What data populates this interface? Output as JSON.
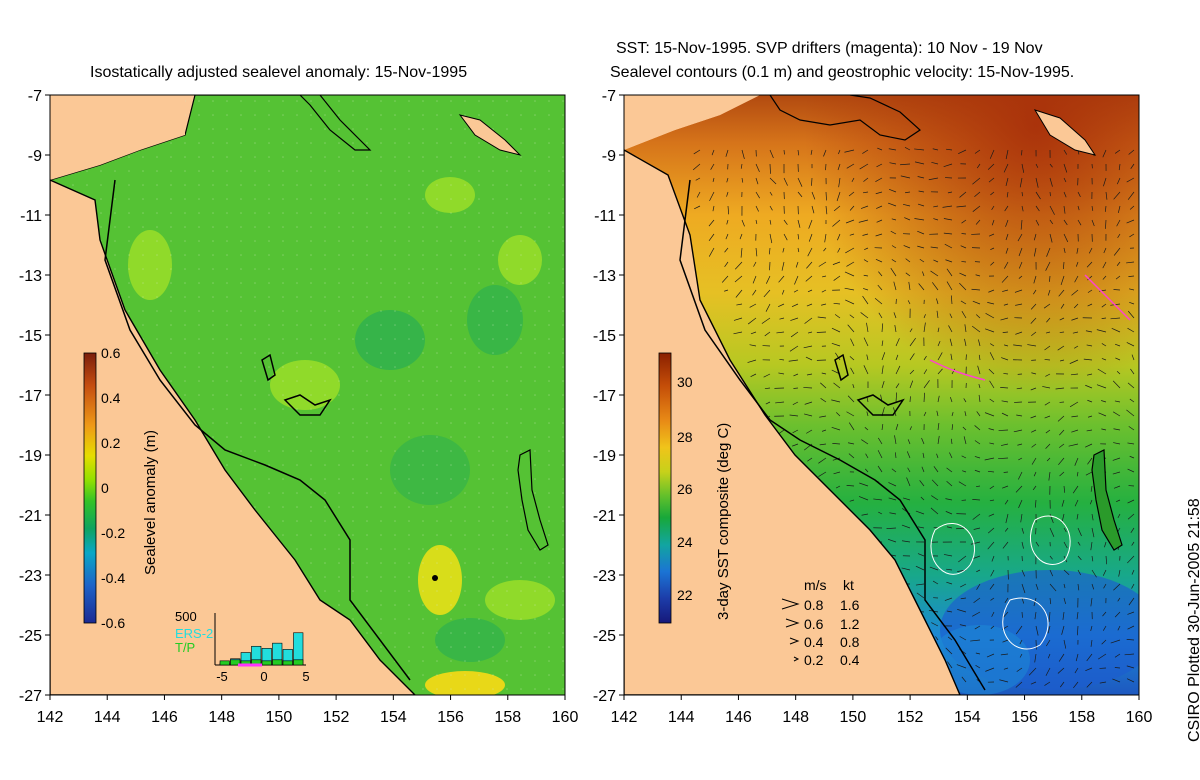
{
  "left_panel": {
    "title": "Isostatically adjusted sealevel anomaly: 15-Nov-1995",
    "colorbar": {
      "label": "Sealevel anomaly (m)",
      "ticks": [
        "0.6",
        "0.4",
        "0.2",
        "0",
        "-0.2",
        "-0.4",
        "-0.6"
      ],
      "colors": [
        "#7a1e0c",
        "#c54d10",
        "#ef9a17",
        "#e6dd00",
        "#93e000",
        "#33c227",
        "#0fa35f",
        "#0aa7c6",
        "#1e64c8",
        "#1b2a93"
      ]
    },
    "histogram": {
      "max_label": "500",
      "x_ticks": [
        "-5",
        "0",
        "5"
      ],
      "legend": [
        {
          "label": "ERS-2",
          "color": "#22dddd"
        },
        {
          "label": "T/P",
          "color": "#22cc22"
        }
      ],
      "ers2_counts": [
        20,
        60,
        120,
        180,
        160,
        210,
        150,
        310
      ],
      "tp_counts": [
        80,
        100,
        80,
        100,
        80,
        100,
        80,
        100
      ]
    }
  },
  "right_panel": {
    "title_line1": "SST: 15-Nov-1995. SVP drifters (magenta): 10 Nov - 19 Nov",
    "title_line2": "Sealevel contours (0.1 m) and geostrophic velocity: 15-Nov-1995.",
    "colorbar": {
      "label": "3-day SST composite (deg C)",
      "ticks": [
        "30",
        "28",
        "26",
        "24",
        "22"
      ],
      "colors": [
        "#8a2000",
        "#c44d08",
        "#e88a16",
        "#f0c41a",
        "#c7d11a",
        "#62c02b",
        "#18a83a",
        "#12a5a0",
        "#1b74d4",
        "#1c3ca8",
        "#16187a"
      ]
    },
    "velocity_key": {
      "headers": [
        "m/s",
        "kt"
      ],
      "rows": [
        {
          "ms": "0.8",
          "kt": "1.6"
        },
        {
          "ms": "0.6",
          "kt": "1.2"
        },
        {
          "ms": "0.4",
          "kt": "0.8"
        },
        {
          "ms": "0.2",
          "kt": "0.4"
        }
      ]
    }
  },
  "axes": {
    "lat_ticks": [
      "-7",
      "-9",
      "-11",
      "-13",
      "-15",
      "-17",
      "-19",
      "-21",
      "-23",
      "-25",
      "-27"
    ],
    "lon_ticks": [
      "142",
      "144",
      "146",
      "148",
      "150",
      "152",
      "154",
      "156",
      "158",
      "160"
    ]
  },
  "colors": {
    "land": "#fbc896",
    "coast": "#000000"
  },
  "credit": "CSIRO Plotted 30-Jun-2005 21:58"
}
